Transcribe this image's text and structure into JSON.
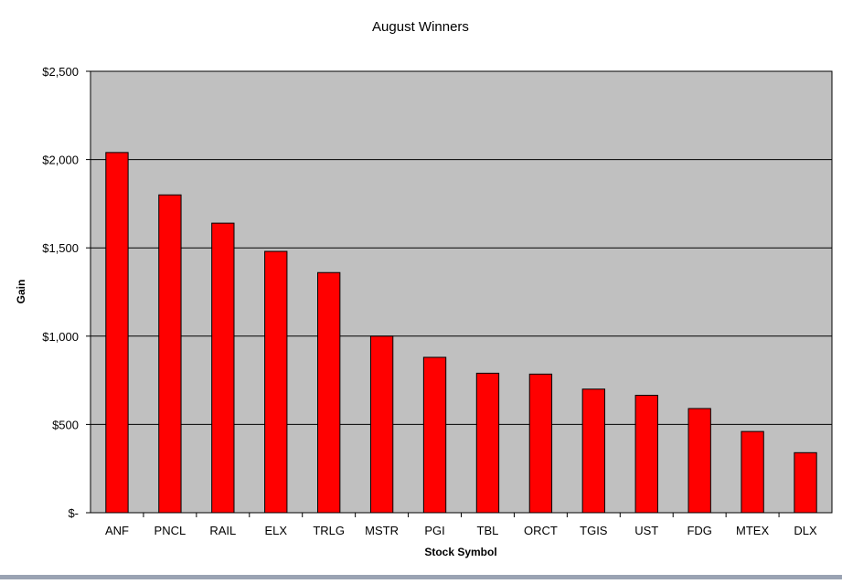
{
  "chart_data": {
    "type": "bar",
    "title": "August Winners",
    "xlabel": "Stock Symbol",
    "ylabel": "Gain",
    "categories": [
      "ANF",
      "PNCL",
      "RAIL",
      "ELX",
      "TRLG",
      "MSTR",
      "PGI",
      "TBL",
      "ORCT",
      "TGIS",
      "UST",
      "FDG",
      "MTEX",
      "DLX"
    ],
    "values": [
      2040,
      1800,
      1640,
      1480,
      1360,
      1000,
      880,
      790,
      785,
      700,
      665,
      590,
      460,
      340
    ],
    "ylim": [
      0,
      2500
    ],
    "yticks": [
      0,
      500,
      1000,
      1500,
      2000,
      2500
    ],
    "ytick_labels": [
      "$-",
      "$500",
      "$1,000",
      "$1,500",
      "$2,000",
      "$2,500"
    ],
    "grid": true,
    "colors": {
      "bar": "#ff0000",
      "bar_stroke": "#000000",
      "plot_background": "#c0c0c0",
      "gridline": "#000000"
    }
  }
}
